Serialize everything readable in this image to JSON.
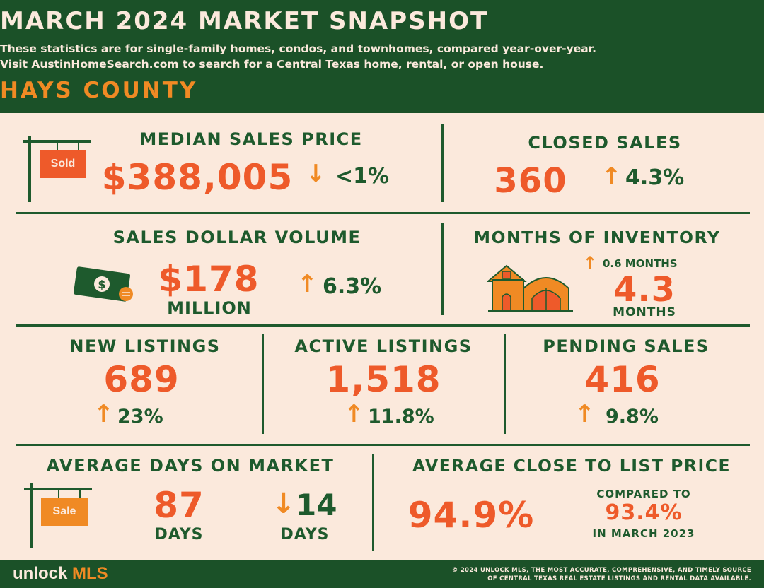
{
  "header": {
    "title": "MARCH 2024 MARKET SNAPSHOT",
    "subtitle_line1": "These statistics are for single-family homes, condos, and townhomes, compared year-over-year.",
    "subtitle_line2": "Visit AustinHomeSearch.com to search for a Central Texas home, rental, or open house.",
    "county": "HAYS COUNTY"
  },
  "median_sales_price": {
    "label": "MEDIAN SALES PRICE",
    "value": "$388,005",
    "change": "<1%",
    "direction": "down",
    "sign_text": "Sold"
  },
  "closed_sales": {
    "label": "CLOSED SALES",
    "value": "360",
    "change": "4.3%",
    "direction": "up"
  },
  "sales_dollar_volume": {
    "label": "SALES DOLLAR VOLUME",
    "value": "$178",
    "unit": "MILLION",
    "change": "6.3%",
    "direction": "up",
    "icon": "money-icon"
  },
  "months_of_inventory": {
    "label": "MONTHS OF INVENTORY",
    "change": "0.6 MONTHS",
    "direction": "up",
    "value": "4.3",
    "unit": "MONTHS",
    "icon": "house-icon"
  },
  "new_listings": {
    "label": "NEW LISTINGS",
    "value": "689",
    "change": "23%",
    "direction": "up"
  },
  "active_listings": {
    "label": "ACTIVE LISTINGS",
    "value": "1,518",
    "change": "11.8%",
    "direction": "up"
  },
  "pending_sales": {
    "label": "PENDING SALES",
    "value": "416",
    "change": "9.8%",
    "direction": "up"
  },
  "average_days_on_market": {
    "label": "AVERAGE DAYS ON MARKET",
    "value": "87",
    "unit": "DAYS",
    "change": "14",
    "change_unit": "DAYS",
    "direction": "down",
    "sign_text": "Sale"
  },
  "average_close_to_list": {
    "label": "AVERAGE CLOSE TO LIST PRICE",
    "value": "94.9%",
    "compared_label": "COMPARED TO",
    "compared_value": "93.4%",
    "compared_period": "IN MARCH 2023"
  },
  "footer": {
    "logo_part1": "unlock ",
    "logo_part2": "MLS",
    "copyright_line1": "© 2024 UNLOCK MLS, THE MOST ACCURATE, COMPREHENSIVE, AND TIMELY SOURCE",
    "copyright_line2": "OF CENTRAL TEXAS REAL ESTATE LISTINGS AND RENTAL DATA AVAILABLE."
  },
  "colors": {
    "green": "#1b5128",
    "orange": "#ee5a2a",
    "amber": "#f08a24",
    "cream": "#fbe9dc"
  }
}
